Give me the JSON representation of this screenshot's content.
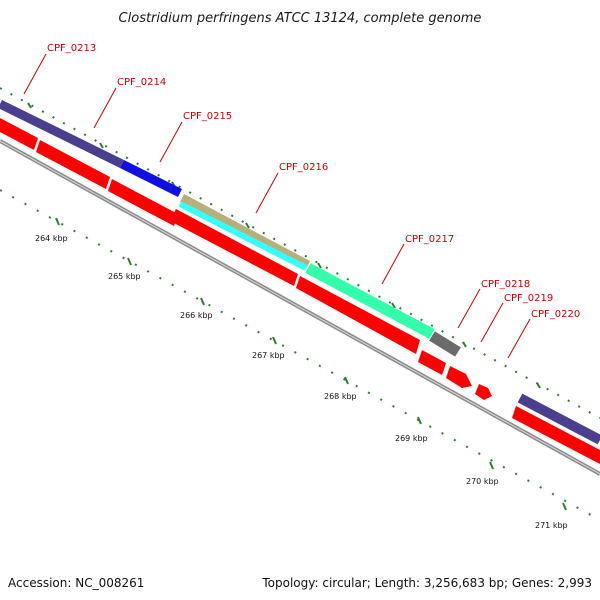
{
  "title": "Clostridium perfringens ATCC 13124, complete genome",
  "footer": {
    "accession": "Accession: NC_008261",
    "summary": "Topology: circular; Length: 3,256,683 bp; Genes: 2,993"
  },
  "gene_labels": [
    "CPF_0213",
    "CPF_0214",
    "CPF_0215",
    "CPF_0216",
    "CPF_0217",
    "CPF_0218",
    "CPF_0219",
    "CPF_0220"
  ],
  "kbp_labels": [
    "264 kbp",
    "265 kbp",
    "266 kbp",
    "267 kbp",
    "268 kbp",
    "269 kbp",
    "270 kbp",
    "271 kbp"
  ],
  "colors": {
    "gene_label": "#cc0000",
    "cds_red": "#ff0000",
    "backbone": "#8a8a8a",
    "tick": "#2e7d2e",
    "feature_navy": "#4a3f8f",
    "feature_blue": "#1010e0",
    "feature_olive": "#b8b07a",
    "feature_cyan": "#33ffff",
    "feature_teal": "#33ffaa",
    "feature_gray": "#6b6b6b"
  }
}
